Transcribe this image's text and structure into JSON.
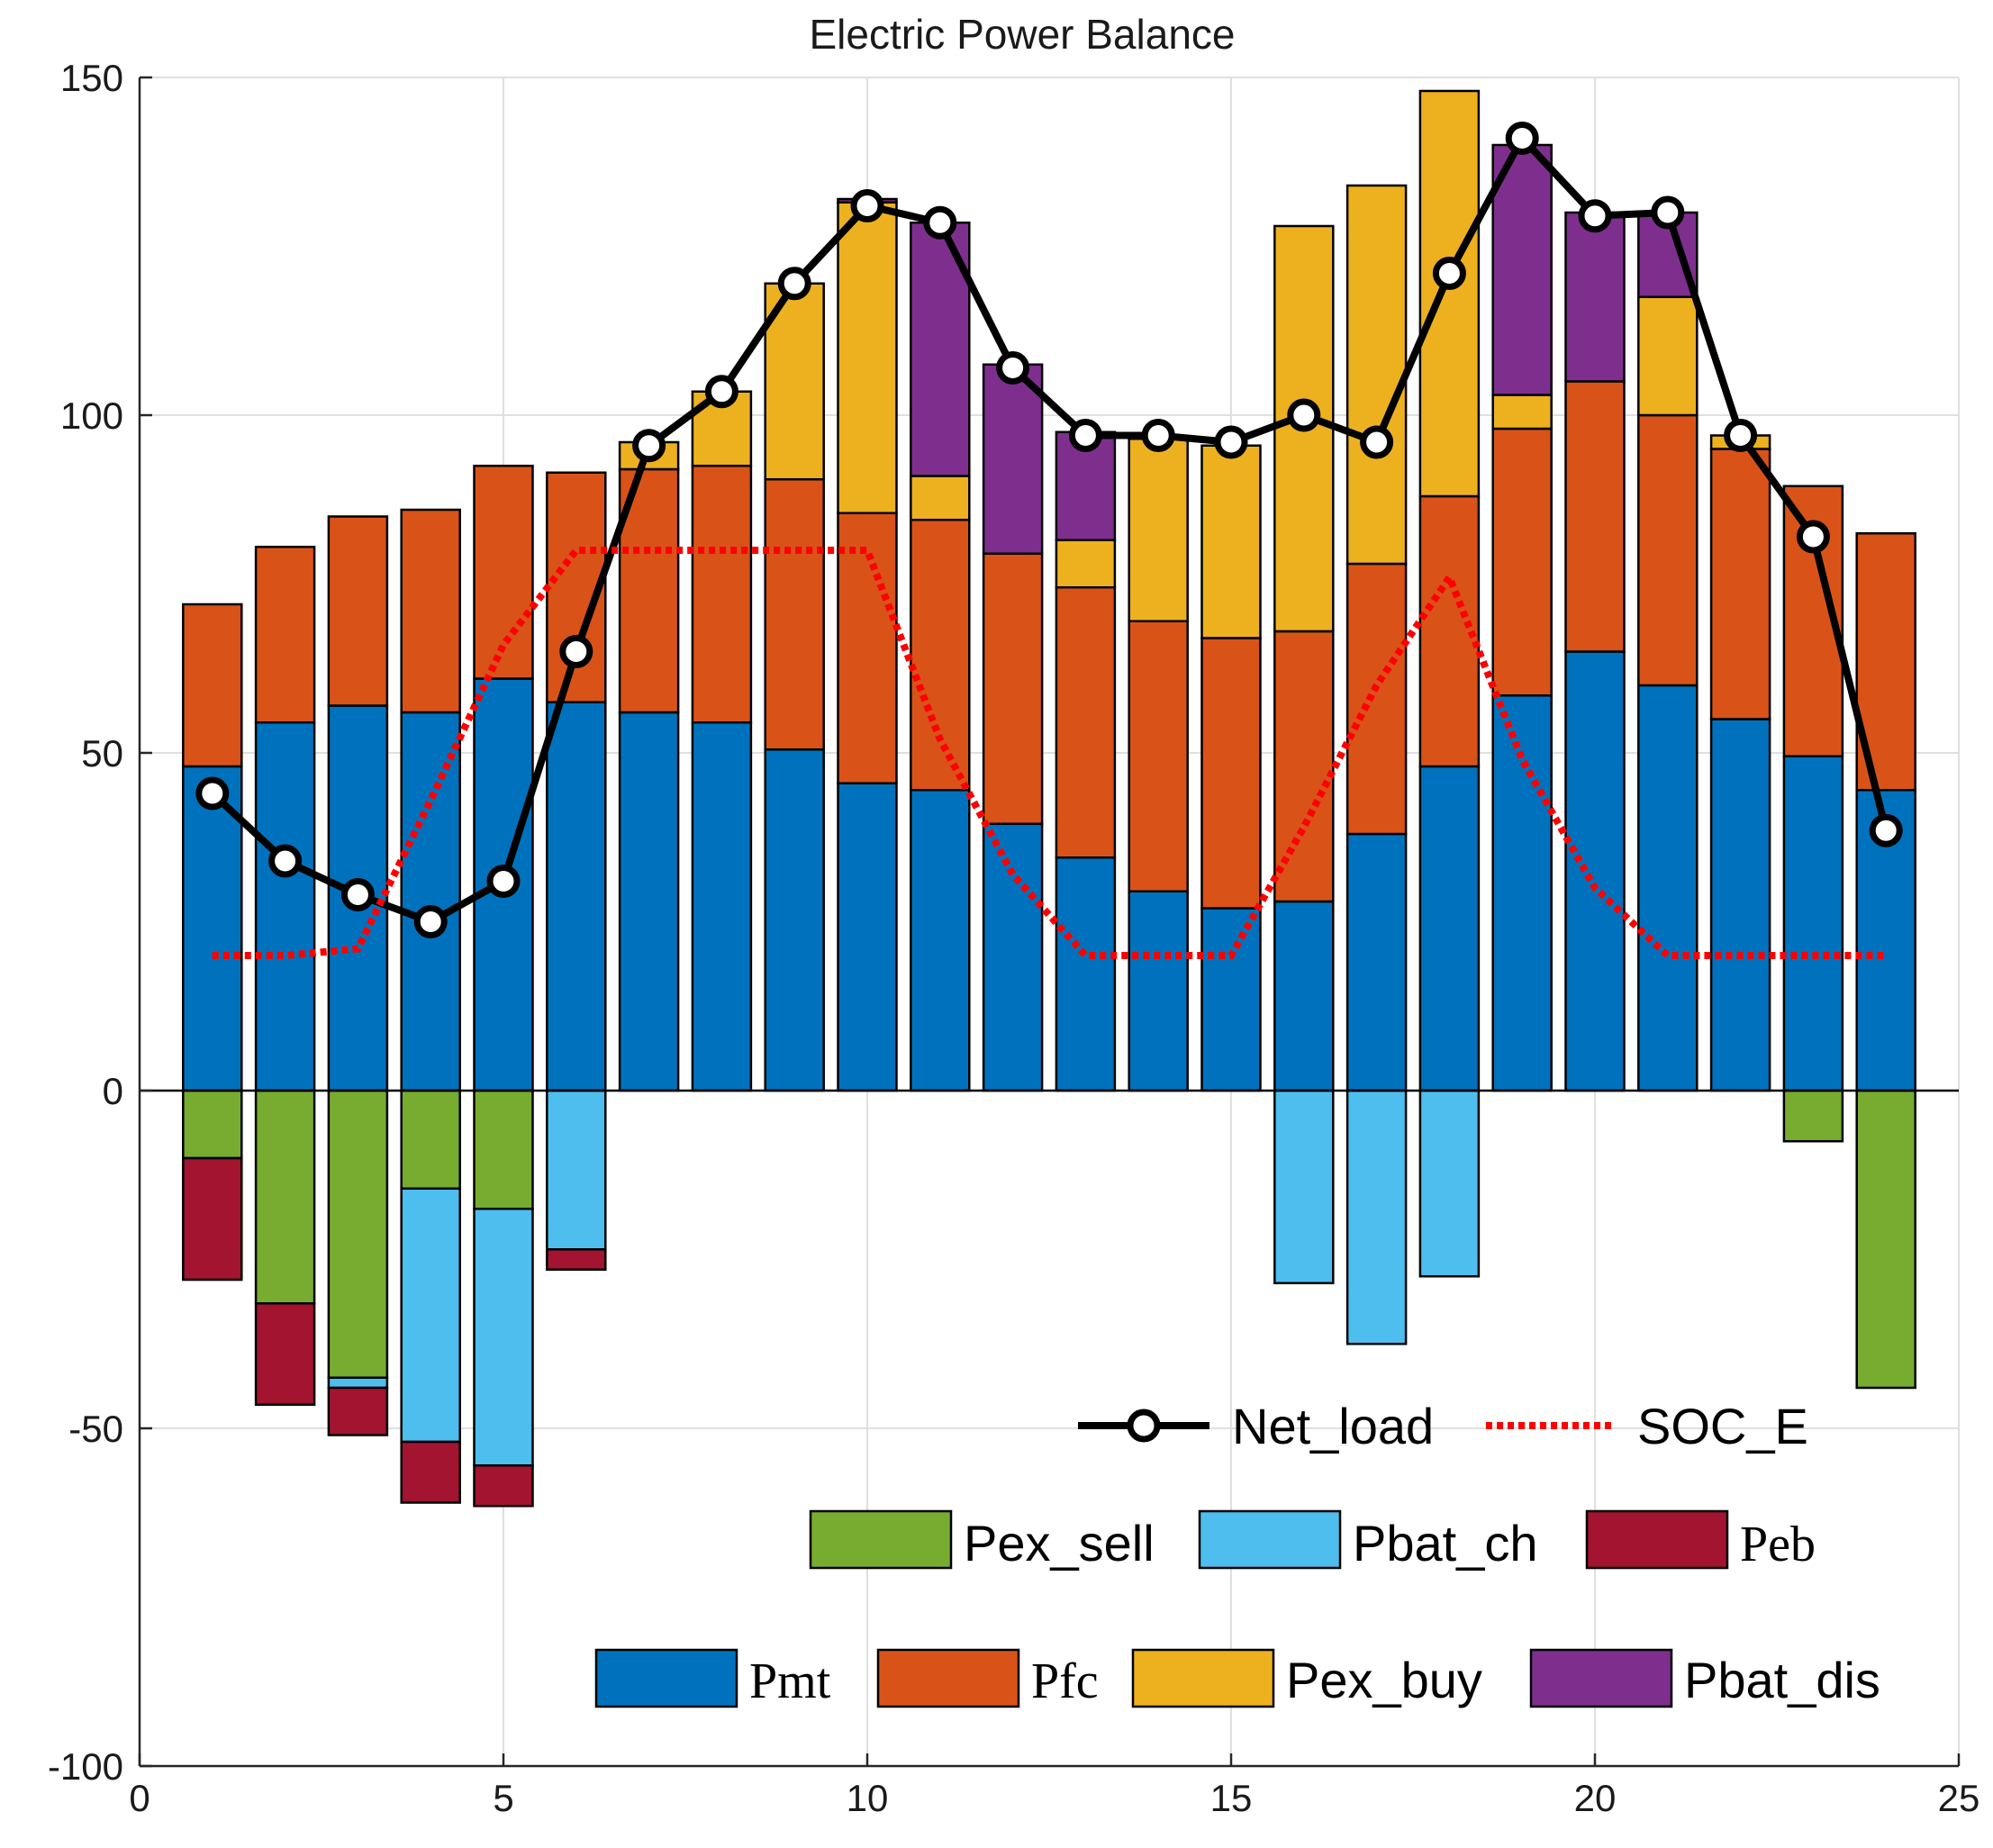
{
  "chart_data": {
    "type": "bar",
    "stacked": true,
    "title": "Electric Power Balance",
    "xlabel": "",
    "ylabel": "",
    "xlim": [
      0,
      25
    ],
    "ylim": [
      -100,
      150
    ],
    "xticks": [
      0,
      5,
      10,
      15,
      20,
      25
    ],
    "yticks": [
      -100,
      -50,
      0,
      50,
      100,
      150
    ],
    "grid": true,
    "x": [
      1,
      2,
      3,
      4,
      5,
      6,
      7,
      8,
      9,
      10,
      11,
      12,
      13,
      14,
      15,
      16,
      17,
      18,
      19,
      20,
      21,
      22,
      23,
      24
    ],
    "positive_series": [
      {
        "name": "Pmt",
        "color": "#0072BD",
        "values": [
          48,
          54.5,
          57,
          56,
          61,
          57.5,
          56,
          54.5,
          50.5,
          45.5,
          44.5,
          39.5,
          34.5,
          29.5,
          27,
          28,
          38,
          48,
          58.5,
          65,
          60,
          55,
          49.5,
          44.5
        ]
      },
      {
        "name": "Pfc",
        "color": "#D95319",
        "values": [
          24,
          26,
          28,
          30,
          31.5,
          34,
          36,
          38,
          40,
          40,
          40,
          40,
          40,
          40,
          40,
          40,
          40,
          40,
          39.5,
          40,
          40,
          40,
          40,
          38
        ]
      },
      {
        "name": "Pex_buy",
        "color": "#EDB120",
        "values": [
          0,
          0,
          0,
          0,
          0,
          0,
          4,
          11,
          29,
          46,
          6.5,
          0,
          7,
          27,
          28.5,
          60,
          56,
          60,
          5,
          0,
          17.5,
          2,
          0,
          0
        ]
      },
      {
        "name": "Pbat_dis",
        "color": "#7E2F8E",
        "values": [
          0,
          0,
          0,
          0,
          0,
          0,
          0,
          0,
          0,
          0.5,
          37.5,
          28,
          16,
          0,
          0,
          0,
          0,
          0,
          37,
          25,
          12.5,
          0,
          0,
          0
        ]
      }
    ],
    "negative_series": [
      {
        "name": "Pex_sell",
        "color": "#77AC30",
        "values": [
          -10,
          -31.5,
          -42.5,
          -14.5,
          -17.5,
          0,
          0,
          0,
          0,
          0,
          0,
          0,
          0,
          0,
          0,
          0,
          0,
          0,
          0,
          0,
          0,
          0,
          -7.5,
          -44
        ]
      },
      {
        "name": "Pbat_ch",
        "color": "#4DBEEE",
        "values": [
          0,
          0,
          -1.5,
          -37.5,
          -38,
          -23.5,
          0,
          0,
          0,
          0,
          0,
          0,
          0,
          0,
          0,
          -28.5,
          -37.5,
          -27.5,
          0,
          0,
          0,
          0,
          0,
          0
        ]
      },
      {
        "name": "Peb",
        "color": "#A2142F",
        "values": [
          -18,
          -15,
          -7,
          -9,
          -6,
          -3,
          0,
          0,
          0,
          0,
          0,
          0,
          0,
          0,
          0,
          0,
          0,
          0,
          0,
          0,
          0,
          0,
          0,
          0
        ]
      }
    ],
    "lines": [
      {
        "name": "Net_load",
        "color": "#000000",
        "style": "solid-circle-markers",
        "values": [
          44,
          34,
          29,
          25,
          31,
          65,
          95.5,
          103.5,
          119.5,
          131,
          128.5,
          107,
          97,
          97,
          96,
          100,
          96,
          121,
          141,
          129.5,
          130,
          97,
          82,
          38.5
        ]
      },
      {
        "name": "SOC_E",
        "color": "#FF0000",
        "style": "dotted",
        "values": [
          20,
          20,
          21,
          43,
          66,
          80,
          80,
          80,
          80,
          80,
          52,
          32,
          20,
          20,
          20,
          39,
          60,
          76,
          49,
          30,
          20,
          20,
          20,
          20
        ]
      }
    ],
    "legend": {
      "position": "bottom-right",
      "rows": [
        [
          "Net_load",
          "SOC_E"
        ],
        [
          "Pex_sell",
          "Pbat_ch",
          "Peb"
        ],
        [
          "Pmt",
          "Pfc",
          "Pex_buy",
          "Pbat_dis"
        ]
      ]
    },
    "legend_labels": {
      "Net_load": "Net_load",
      "SOC_E": "SOC_E",
      "Pex_sell": "Pex_sell",
      "Pbat_ch": "Pbat_ch",
      "Peb": "Peb",
      "Pmt": "Pmt",
      "Pfc": "Pfc",
      "Pex_buy": "Pex_buy",
      "Pbat_dis": "Pbat_dis"
    }
  }
}
